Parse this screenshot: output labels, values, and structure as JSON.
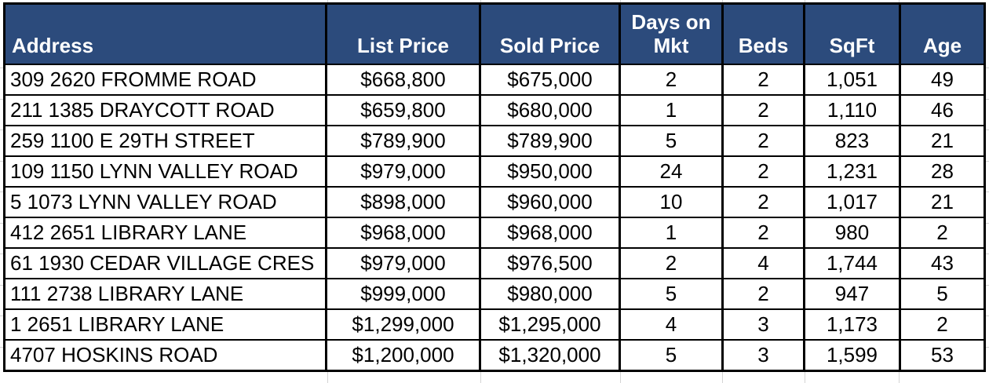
{
  "table": {
    "columns": [
      {
        "label": "Address"
      },
      {
        "label": "List Price"
      },
      {
        "label": "Sold Price"
      },
      {
        "label": "Days on Mkt"
      },
      {
        "label": "Beds"
      },
      {
        "label": "SqFt"
      },
      {
        "label": "Age"
      }
    ],
    "rows": [
      {
        "cells": [
          "309 2620 FROMME ROAD",
          "$668,800",
          "$675,000",
          "2",
          "2",
          "1,051",
          "49"
        ]
      },
      {
        "cells": [
          "211 1385 DRAYCOTT ROAD",
          "$659,800",
          "$680,000",
          "1",
          "2",
          "1,110",
          "46"
        ]
      },
      {
        "cells": [
          "259 1100 E 29TH STREET",
          "$789,900",
          "$789,900",
          "5",
          "2",
          "823",
          "21"
        ]
      },
      {
        "cells": [
          "109 1150 LYNN VALLEY ROAD",
          "$979,000",
          "$950,000",
          "24",
          "2",
          "1,231",
          "28"
        ]
      },
      {
        "cells": [
          "5 1073 LYNN VALLEY ROAD",
          "$898,000",
          "$960,000",
          "10",
          "2",
          "1,017",
          "21"
        ]
      },
      {
        "cells": [
          "412 2651 LIBRARY LANE",
          "$968,000",
          "$968,000",
          "1",
          "2",
          "980",
          "2"
        ]
      },
      {
        "cells": [
          "61 1930 CEDAR VILLAGE CRES",
          "$979,000",
          "$976,500",
          "2",
          "4",
          "1,744",
          "43"
        ]
      },
      {
        "cells": [
          "111 2738 LIBRARY LANE",
          "$999,000",
          "$980,000",
          "5",
          "2",
          "947",
          "5"
        ]
      },
      {
        "cells": [
          "1 2651 LIBRARY LANE",
          "$1,299,000",
          "$1,295,000",
          "4",
          "3",
          "1,173",
          "2"
        ]
      },
      {
        "cells": [
          "4707 HOSKINS ROAD",
          "$1,200,000",
          "$1,320,000",
          "5",
          "3",
          "1,599",
          "53"
        ]
      }
    ]
  },
  "colors": {
    "header_bg": "#2C4B7C",
    "header_text": "#FFFFFF",
    "border": "#000000",
    "gridline": "#D4D4D4"
  }
}
